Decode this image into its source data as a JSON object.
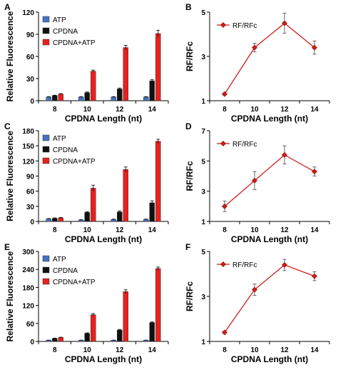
{
  "chart_data": [
    {
      "panel": "A",
      "type": "bar",
      "categories": [
        "8",
        "10",
        "12",
        "14"
      ],
      "xlabel": "CPDNA Length (nt)",
      "ylabel": "Relative Fluorescence",
      "ylim": [
        0,
        120
      ],
      "yticks": [
        0,
        30,
        60,
        90,
        120
      ],
      "legend_position": "top-left",
      "series": [
        {
          "name": "ATP",
          "color": "#4472c4",
          "values": [
            5,
            5,
            5,
            5
          ],
          "errors": [
            0.5,
            0.5,
            0.5,
            0.5
          ]
        },
        {
          "name": "CPDNA",
          "color": "#111111",
          "values": [
            7,
            11,
            16,
            27
          ],
          "errors": [
            0.5,
            0.8,
            1.2,
            1.5
          ]
        },
        {
          "name": "CPDNA+ATP",
          "color": "#e8211d",
          "values": [
            9,
            40,
            72,
            91
          ],
          "errors": [
            0.6,
            1.5,
            3,
            4.5
          ]
        }
      ]
    },
    {
      "panel": "B",
      "type": "line",
      "x": [
        "8",
        "10",
        "12",
        "14"
      ],
      "xlabel": "CPDNA Length (nt)",
      "ylabel": "RF/RFc",
      "ylim": [
        1,
        5
      ],
      "yticks": [
        1,
        3,
        5
      ],
      "legend_position": "top-left",
      "series": [
        {
          "name": "RF/RFc",
          "color": "#cc1f1a",
          "values": [
            1.3,
            3.4,
            4.5,
            3.4
          ],
          "errors": [
            0.05,
            0.2,
            0.45,
            0.3
          ]
        }
      ]
    },
    {
      "panel": "C",
      "type": "bar",
      "categories": [
        "8",
        "10",
        "12",
        "14"
      ],
      "xlabel": "CPDNA Length (nt)",
      "ylabel": "Relative Fluorescence",
      "ylim": [
        0,
        180
      ],
      "yticks": [
        0,
        30,
        60,
        90,
        120,
        150,
        180
      ],
      "legend_position": "top-left",
      "series": [
        {
          "name": "ATP",
          "color": "#4472c4",
          "values": [
            5,
            3,
            4,
            4
          ],
          "errors": [
            0.8,
            0.6,
            0.6,
            0.6
          ]
        },
        {
          "name": "CPDNA",
          "color": "#111111",
          "values": [
            6,
            18,
            19,
            37
          ],
          "errors": [
            1,
            1.5,
            2,
            4
          ]
        },
        {
          "name": "CPDNA+ATP",
          "color": "#e8211d",
          "values": [
            7,
            66,
            103,
            159
          ],
          "errors": [
            1,
            6,
            5,
            4
          ]
        }
      ]
    },
    {
      "panel": "D",
      "type": "line",
      "x": [
        "8",
        "10",
        "12",
        "14"
      ],
      "xlabel": "CPDNA Length (nt)",
      "ylabel": "RF/RFc",
      "ylim": [
        1,
        7
      ],
      "yticks": [
        1,
        3,
        5,
        7
      ],
      "legend_position": "top-left",
      "series": [
        {
          "name": "RF/RFc",
          "color": "#cc1f1a",
          "values": [
            2.0,
            3.7,
            5.4,
            4.3
          ],
          "errors": [
            0.35,
            0.6,
            0.6,
            0.3
          ]
        }
      ]
    },
    {
      "panel": "E",
      "type": "bar",
      "categories": [
        "8",
        "10",
        "12",
        "14"
      ],
      "xlabel": "CPDNA Length (nt)",
      "ylabel": "Relative Fluorescence",
      "ylim": [
        0,
        300
      ],
      "yticks": [
        0,
        60,
        120,
        180,
        240,
        300
      ],
      "legend_position": "top-left",
      "series": [
        {
          "name": "ATP",
          "color": "#4472c4",
          "values": [
            4,
            4,
            4,
            4
          ],
          "errors": [
            0.5,
            0.5,
            0.5,
            0.5
          ]
        },
        {
          "name": "CPDNA",
          "color": "#111111",
          "values": [
            10,
            27,
            38,
            63
          ],
          "errors": [
            1,
            1.5,
            2,
            2
          ]
        },
        {
          "name": "CPDNA+ATP",
          "color": "#e8211d",
          "values": [
            13,
            89,
            166,
            243
          ],
          "errors": [
            1,
            4,
            6,
            5
          ]
        }
      ]
    },
    {
      "panel": "F",
      "type": "line",
      "x": [
        "8",
        "10",
        "12",
        "14"
      ],
      "xlabel": "CPDNA Length (nt)",
      "ylabel": "RF/RFc",
      "ylim": [
        1,
        5
      ],
      "yticks": [
        1,
        3,
        5
      ],
      "legend_position": "top-left",
      "series": [
        {
          "name": "RF/RFc",
          "color": "#cc1f1a",
          "values": [
            1.4,
            3.3,
            4.4,
            3.9
          ],
          "errors": [
            0.05,
            0.25,
            0.25,
            0.2
          ]
        }
      ]
    }
  ]
}
